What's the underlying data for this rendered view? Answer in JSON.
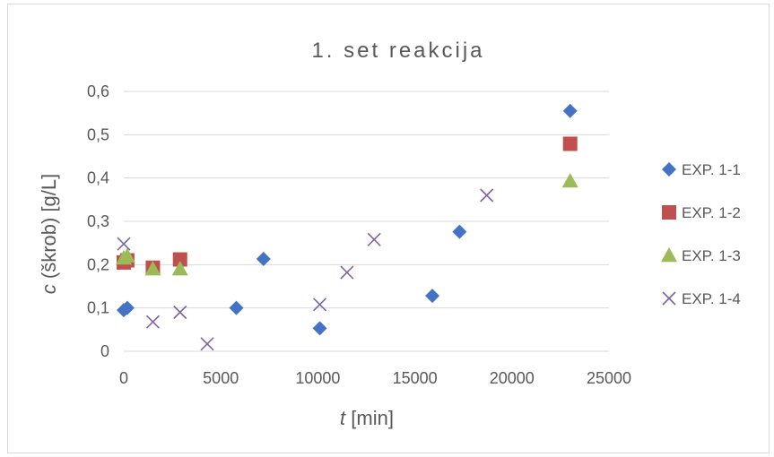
{
  "chart_data": {
    "type": "scatter",
    "title": "1. set reakcija",
    "xlabel_italic": "t",
    "xlabel_rest": " [min]",
    "ylabel_italic": "c",
    "ylabel_rest": " (škrob) [g/L]",
    "xlim": [
      0,
      25000
    ],
    "ylim": [
      0,
      0.6
    ],
    "x_ticks": [
      0,
      5000,
      10000,
      15000,
      20000,
      25000
    ],
    "x_tick_labels": [
      "0",
      "5000",
      "10000",
      "15000",
      "20000",
      "25000"
    ],
    "y_ticks": [
      0,
      0.1,
      0.2,
      0.3,
      0.4,
      0.5,
      0.6
    ],
    "y_tick_labels": [
      "0",
      "0,1",
      "0,2",
      "0,3",
      "0,4",
      "0,5",
      "0,6"
    ],
    "grid": "horizontal",
    "legend_position": "right",
    "series": [
      {
        "name": "EXP. 1-1",
        "marker": "diamond",
        "color": "#4472C4",
        "points": [
          [
            0,
            0.095
          ],
          [
            180,
            0.1
          ],
          [
            5800,
            0.1
          ],
          [
            7200,
            0.213
          ],
          [
            10100,
            0.053
          ],
          [
            15900,
            0.128
          ],
          [
            17300,
            0.276
          ],
          [
            23000,
            0.555
          ]
        ]
      },
      {
        "name": "EXP. 1-2",
        "marker": "square",
        "color": "#C0504D",
        "points": [
          [
            0,
            0.205
          ],
          [
            180,
            0.21
          ],
          [
            1500,
            0.193
          ],
          [
            2900,
            0.212
          ],
          [
            23000,
            0.479
          ]
        ]
      },
      {
        "name": "EXP. 1-3",
        "marker": "triangle",
        "color": "#9BBB59",
        "points": [
          [
            0,
            0.215
          ],
          [
            180,
            0.22
          ],
          [
            1500,
            0.19
          ],
          [
            2900,
            0.19
          ],
          [
            23000,
            0.393
          ]
        ]
      },
      {
        "name": "EXP. 1-4",
        "marker": "x",
        "color": "#8064A2",
        "points": [
          [
            0,
            0.248
          ],
          [
            1500,
            0.068
          ],
          [
            2900,
            0.09
          ],
          [
            4300,
            0.017
          ],
          [
            10100,
            0.108
          ],
          [
            11500,
            0.182
          ],
          [
            12900,
            0.258
          ],
          [
            18700,
            0.36
          ]
        ]
      }
    ]
  }
}
